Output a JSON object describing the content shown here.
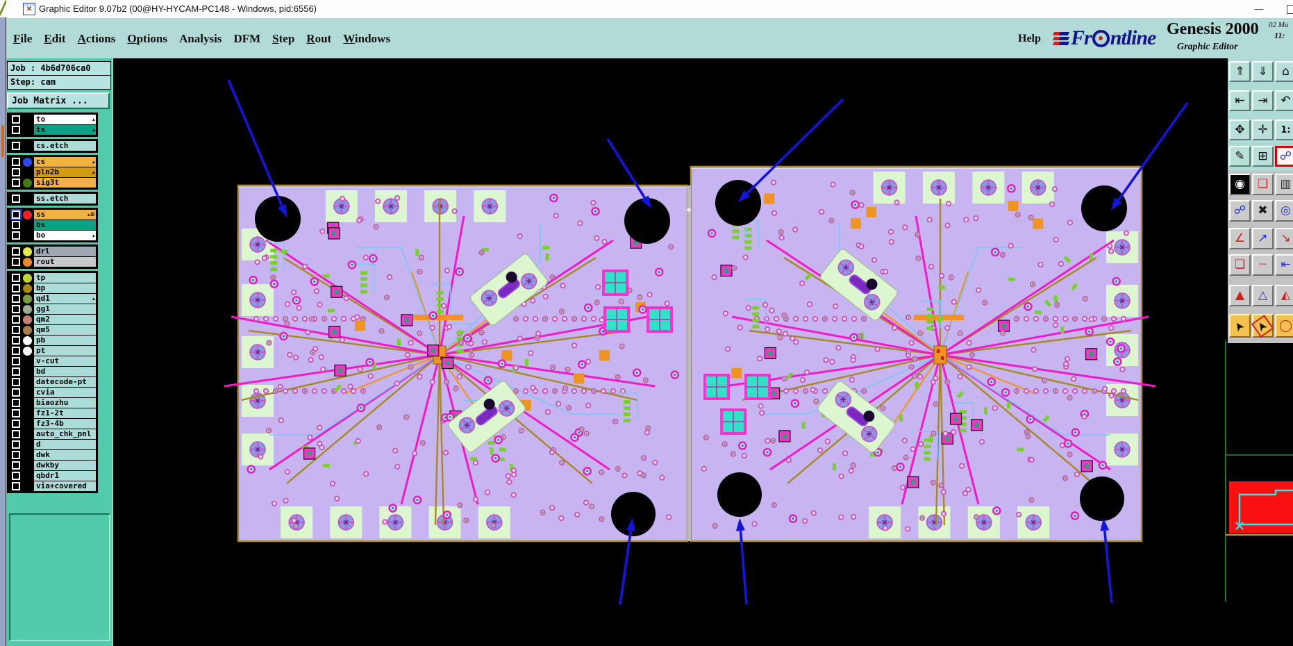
{
  "window": {
    "title": "Graphic Editor 9.07b2 (00@HY-HYCAM-PC148 - Windows, pid:6556)",
    "controls": {
      "minimize": "—"
    }
  },
  "menubar": {
    "items": [
      {
        "label": "File",
        "underline": 0
      },
      {
        "label": "Edit",
        "underline": 0
      },
      {
        "label": "Actions",
        "underline": 0
      },
      {
        "label": "Options",
        "underline": 0
      },
      {
        "label": "Analysis",
        "underline": -1
      },
      {
        "label": "DFM",
        "underline": -1
      },
      {
        "label": "Step",
        "underline": 0
      },
      {
        "label": "Rout",
        "underline": 0
      },
      {
        "label": "Windows",
        "underline": 0
      }
    ],
    "help": "Help"
  },
  "brand": {
    "name": "Frontline",
    "product": "Genesis 2000",
    "edition": "Graphic Editor",
    "date": "02 Ma",
    "time": "11:"
  },
  "sidebar": {
    "job": "Job : 4b6d706ca0",
    "step": "Step: cam",
    "matrix": "Job Matrix ...",
    "layer_groups": [
      [
        {
          "name": "to",
          "bg": "#ffffff",
          "arrow": true
        },
        {
          "name": "ts",
          "bg": "#07a183",
          "arrow": true
        }
      ],
      [
        {
          "name": "cs.etch",
          "bg": "#abdcd8"
        }
      ],
      [
        {
          "name": "cs",
          "bg": "#f3b23f",
          "dot": "#2f46e8",
          "arrow": true
        },
        {
          "name": "pln2b",
          "bg": "#d29a12",
          "arrow": true
        },
        {
          "name": "sig3t",
          "bg": "#f3b23f",
          "dot": "#3f7a14"
        }
      ],
      [
        {
          "name": "ss.etch",
          "bg": "#abdcd8"
        }
      ],
      [
        {
          "name": "ss",
          "bg": "#f3b23f",
          "dot": "#ee2222",
          "arrow": true,
          "grid": true,
          "selected": true
        },
        {
          "name": "bs",
          "bg": "#07a183"
        },
        {
          "name": "bo",
          "bg": "#ffffff",
          "arrow": true
        }
      ],
      [
        {
          "name": "drl",
          "bg": "#9fa9b4",
          "dot": "#e9e94e"
        },
        {
          "name": "rout",
          "bg": "#c6c9cb",
          "dot": "#e98a2e"
        }
      ],
      [
        {
          "name": "tp",
          "bg": "#abdcd8",
          "dot": "#bcd836"
        },
        {
          "name": "bp",
          "bg": "#abdcd8",
          "dot": "#a8880e"
        },
        {
          "name": "qd1",
          "bg": "#abdcd8",
          "dot": "#7e9a40",
          "arrow": true
        },
        {
          "name": "gg1",
          "bg": "#abdcd8",
          "dot": "#9aae90"
        },
        {
          "name": "qm2",
          "bg": "#abdcd8",
          "dot": "#c87e6e"
        },
        {
          "name": "qm5",
          "bg": "#abdcd8",
          "dot": "#a87e48"
        },
        {
          "name": "pb",
          "bg": "#abdcd8",
          "dot": "#ffffff"
        },
        {
          "name": "pt",
          "bg": "#abdcd8",
          "dot": "#ffffff"
        },
        {
          "name": "v-cut",
          "bg": "#abdcd8"
        },
        {
          "name": "bd",
          "bg": "#abdcd8"
        },
        {
          "name": "datecode-pt",
          "bg": "#abdcd8"
        },
        {
          "name": "cvia",
          "bg": "#abdcd8"
        },
        {
          "name": "biaozhu",
          "bg": "#abdcd8"
        },
        {
          "name": "fz1-2t",
          "bg": "#abdcd8"
        },
        {
          "name": "fz3-4b",
          "bg": "#abdcd8"
        },
        {
          "name": "auto_chk_pnl",
          "bg": "#abdcd8"
        },
        {
          "name": "d",
          "bg": "#abdcd8"
        },
        {
          "name": "dwk",
          "bg": "#abdcd8"
        },
        {
          "name": "dwkby",
          "bg": "#abdcd8"
        },
        {
          "name": "qbdr1",
          "bg": "#abdcd8"
        },
        {
          "name": "via+covered",
          "bg": "#abdcd8"
        }
      ]
    ]
  },
  "toolbar": {
    "buttons": [
      {
        "n": "import-file-icon",
        "g": "⇑",
        "s": "teal"
      },
      {
        "n": "screen-dump-icon",
        "g": "⇓",
        "s": "teal"
      },
      {
        "n": "home-view-icon",
        "g": "⌂",
        "s": "teal"
      },
      {
        "n": "shift-left-icon",
        "g": "⇤",
        "s": "teal"
      },
      {
        "n": "shift-right-icon",
        "g": "⇥",
        "s": "teal"
      },
      {
        "n": "undo-icon",
        "g": "↶",
        "s": "teal"
      },
      {
        "n": "zoom-fit-icon",
        "g": "✥",
        "s": "teal"
      },
      {
        "n": "pan-center-icon",
        "g": "✛",
        "s": "teal"
      },
      {
        "n": "zoom-1-1-icon",
        "g": "1:",
        "s": "teal",
        "cls": "g1to1"
      },
      {
        "n": "setup-pen-icon",
        "g": "✎",
        "s": "teal"
      },
      {
        "n": "grid-toggle-icon",
        "g": "⊞",
        "s": "teal"
      },
      {
        "n": "netlist-icon",
        "g": "☍",
        "s": "hl"
      },
      {
        "n": "snapshot-icon",
        "g": "◉",
        "s": "dark"
      },
      {
        "n": "zoom-area-icon",
        "g": "❏",
        "s": "gray",
        "c": "#cf1f1f"
      },
      {
        "n": "ruler-icon",
        "g": "▥",
        "s": "gray",
        "c": "#333333"
      },
      {
        "n": "net-highlight-icon",
        "g": "☍",
        "s": "gray",
        "c": "#2431cc"
      },
      {
        "n": "clear-marks-icon",
        "g": "✖",
        "s": "gray",
        "c": "#1a1a1a"
      },
      {
        "n": "select-net-icon",
        "g": "◎",
        "s": "gray",
        "c": "#2431cc"
      },
      {
        "n": "measure-angle-icon",
        "g": "∠",
        "s": "gray",
        "c": "#cf1f1f"
      },
      {
        "n": "measure-line-icon",
        "g": "↗",
        "s": "gray",
        "c": "#2431cc"
      },
      {
        "n": "measure-seg-icon",
        "g": "↘",
        "s": "gray",
        "c": "#cf1f1f"
      },
      {
        "n": "pad-copy-icon",
        "g": "❏",
        "s": "gray",
        "c": "#cf1f1f"
      },
      {
        "n": "pitch-line-icon",
        "g": "┄",
        "s": "gray",
        "c": "#cf1f1f"
      },
      {
        "n": "width-measure-icon",
        "g": "⇤",
        "s": "gray",
        "c": "#2431cc"
      },
      {
        "n": "triangle-up-icon",
        "g": "▲",
        "s": "gray",
        "c": "#cf1f1f"
      },
      {
        "n": "triangle-open-icon",
        "g": "△",
        "s": "gray",
        "c": "#2431cc"
      },
      {
        "n": "triangle-half-icon",
        "g": "◭",
        "s": "gray",
        "c": "#cf1f1f"
      },
      {
        "n": "select-cursor-icon",
        "g": "➤",
        "s": "yellow",
        "rot": true
      },
      {
        "n": "frame-select-icon",
        "g": "➤",
        "s": "yellowbox",
        "rot": true
      },
      {
        "n": "round-select-icon",
        "g": "◯",
        "s": "yellow",
        "c": "#cf1f1f"
      }
    ]
  },
  "canvas": {
    "colors": {
      "board": "#c6b5f0",
      "board_border": "#ae8e2a",
      "pale": "#dcf7cf",
      "pad_ring": "#c94fb5",
      "pad_fill": "#ead9f7",
      "pad_green": "#3fae2e",
      "donut_ring": "#e21ecb",
      "donut_fill": "#bfe8c8",
      "blue_pad": "#8d98e2",
      "smd_green": "#76d22a",
      "magenta": "#f318c8",
      "khaki": "#a8871f",
      "orange": "#ef9422",
      "cyan_trace": "#74c8f4",
      "cyan_big": "#2fe3c9",
      "purple_comp": "#7a28c0",
      "hole": "#000000",
      "arrow_blue": "#1414dd",
      "divider": "#b9b9b9",
      "ov_green": "#2f8f2f",
      "ov_red": "#fa1010",
      "ov_cyan": "#22f0f0",
      "ov_orange": "#e07820"
    }
  }
}
